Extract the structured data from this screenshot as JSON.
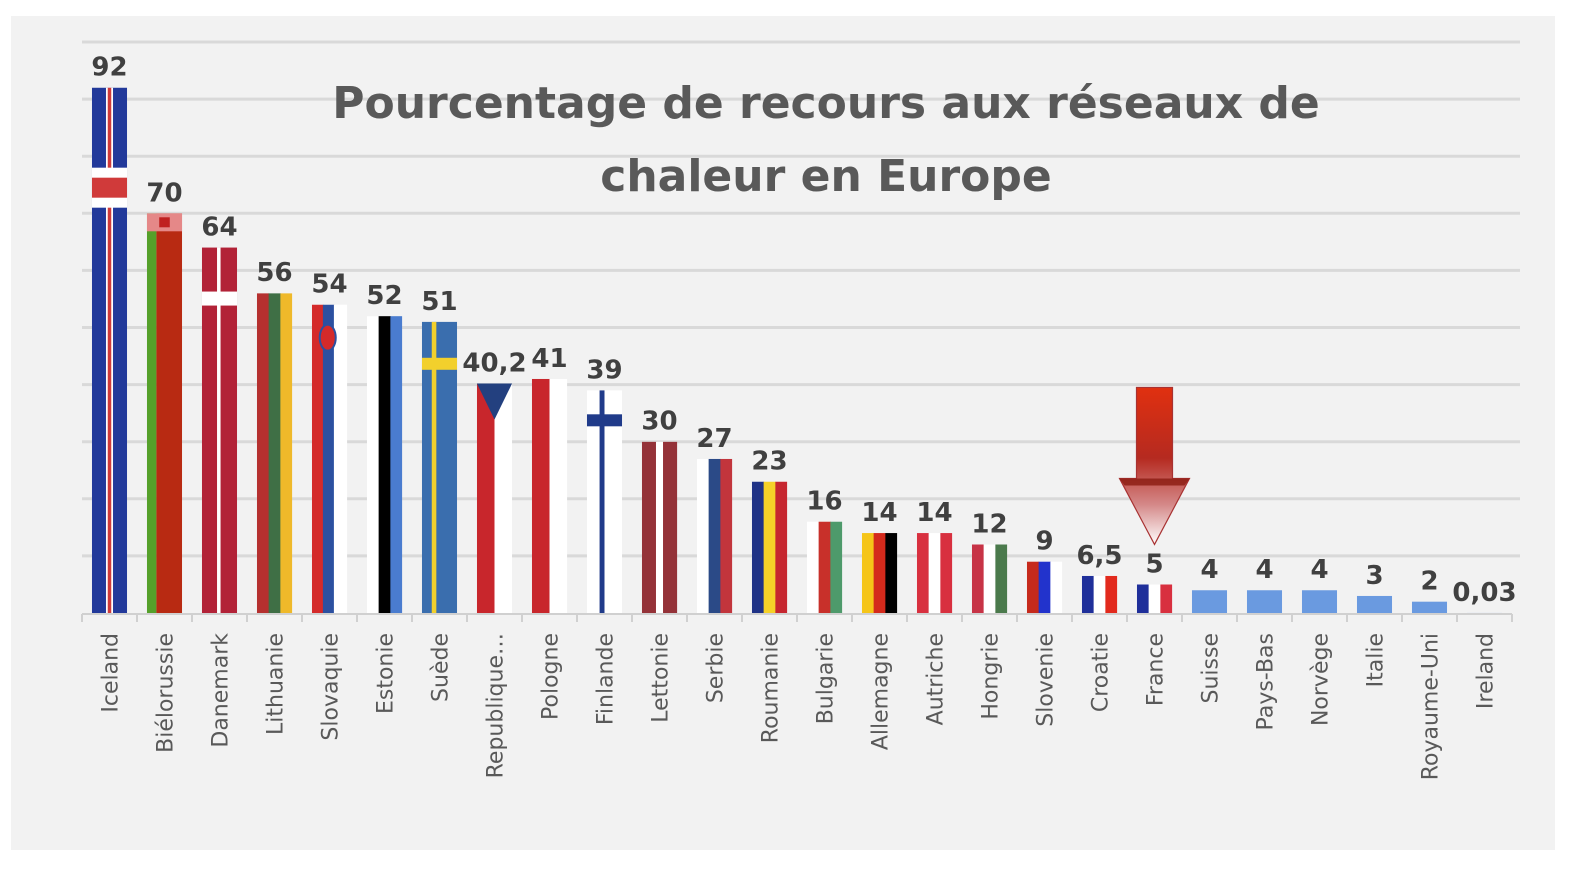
{
  "chart_data": {
    "type": "bar",
    "title": "Pourcentage de recours aux réseaux de chaleur en Europe",
    "title_lines": [
      "Pourcentage de recours aux réseaux de",
      "chaleur en Europe"
    ],
    "xlabel": "",
    "ylabel": "",
    "ylim": [
      0,
      100
    ],
    "grid_step": 10,
    "grid": true,
    "legend": "none",
    "categories": [
      "Iceland",
      "Biélorussie",
      "Danemark",
      "Lithuanie",
      "Slovaquie",
      "Estonie",
      "Suède",
      "Republique…",
      "Pologne",
      "Finlande",
      "Lettonie",
      "Serbie",
      "Roumanie",
      "Bulgarie",
      "Allemagne",
      "Autriche",
      "Hongrie",
      "Slovenie",
      "Croatie",
      "France",
      "Suisse",
      "Pays-Bas",
      "Norvège",
      "Italie",
      "Royaume-Uni",
      "Ireland"
    ],
    "values": [
      92,
      70,
      64,
      56,
      54,
      52,
      51,
      40.2,
      41,
      39,
      30,
      27,
      23,
      16,
      14,
      14,
      12,
      9,
      6.5,
      5,
      4,
      4,
      4,
      3,
      2,
      0.03
    ],
    "data_labels": [
      "92",
      "70",
      "64",
      "56",
      "54",
      "52",
      "51",
      "40,2",
      "41",
      "39",
      "30",
      "27",
      "23",
      "16",
      "14",
      "14",
      "12",
      "9",
      "6,5",
      "5",
      "4",
      "4",
      "4",
      "3",
      "2",
      "0,03"
    ],
    "flag_fills": [
      {
        "type": "iceland"
      },
      {
        "type": "belarus"
      },
      {
        "type": "denmark"
      },
      {
        "type": "vstripes",
        "colors": [
          "#b5302f",
          "#3f6f45",
          "#efb92a"
        ]
      },
      {
        "type": "slovakia"
      },
      {
        "type": "vstripes",
        "colors": [
          "#ffffff",
          "#000000",
          "#4a7ccf"
        ]
      },
      {
        "type": "sweden"
      },
      {
        "type": "czech"
      },
      {
        "type": "vstripes",
        "colors": [
          "#c8262c",
          "#ffffff"
        ]
      },
      {
        "type": "finland"
      },
      {
        "type": "vstripes",
        "colors": [
          "#943238",
          "#ffffff",
          "#943238"
        ],
        "weights": [
          2,
          1,
          2
        ]
      },
      {
        "type": "vstripes",
        "colors": [
          "#ffffff",
          "#2b4a87",
          "#c2353c"
        ]
      },
      {
        "type": "vstripes",
        "colors": [
          "#1f3286",
          "#f5d128",
          "#c6262f"
        ]
      },
      {
        "type": "vstripes",
        "colors": [
          "#ffffff",
          "#c8302a",
          "#4e9a6b"
        ]
      },
      {
        "type": "vstripes",
        "colors": [
          "#f5c518",
          "#d42a1c",
          "#000000"
        ]
      },
      {
        "type": "vstripes",
        "colors": [
          "#d8303f",
          "#ffffff",
          "#d8303f"
        ]
      },
      {
        "type": "vstripes",
        "colors": [
          "#c73346",
          "#ffffff",
          "#4b7a4c"
        ]
      },
      {
        "type": "vstripes",
        "colors": [
          "#c62a1c",
          "#2233cc",
          "#ffffff"
        ]
      },
      {
        "type": "vstripes",
        "colors": [
          "#1f2f9a",
          "#ffffff",
          "#e22a1d"
        ]
      },
      {
        "type": "vstripes",
        "colors": [
          "#1f2f9a",
          "#ffffff",
          "#d8303f"
        ]
      },
      {
        "type": "solid",
        "colors": [
          "#6a9ae0"
        ]
      },
      {
        "type": "solid",
        "colors": [
          "#6a9ae0"
        ]
      },
      {
        "type": "solid",
        "colors": [
          "#6a9ae0"
        ]
      },
      {
        "type": "solid",
        "colors": [
          "#6a9ae0"
        ]
      },
      {
        "type": "solid",
        "colors": [
          "#6a9ae0"
        ]
      },
      {
        "type": "solid",
        "colors": [
          "#6a9ae0"
        ]
      }
    ],
    "annotations": [
      {
        "type": "arrow-down",
        "target_category": "France",
        "color": "#d42a10"
      }
    ]
  }
}
